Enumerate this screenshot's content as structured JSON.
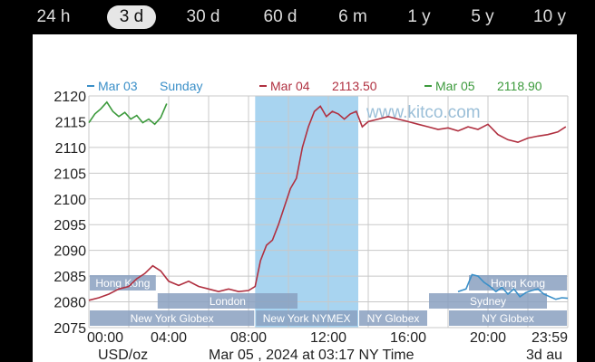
{
  "tabs": [
    {
      "label": "24 h",
      "active": false
    },
    {
      "label": "3 d",
      "active": true
    },
    {
      "label": "30 d",
      "active": false
    },
    {
      "label": "60 d",
      "active": false
    },
    {
      "label": "6 m",
      "active": false
    },
    {
      "label": "1 y",
      "active": false
    },
    {
      "label": "5 y",
      "active": false
    },
    {
      "label": "10 y",
      "active": false
    }
  ],
  "watermark": "www.kitco.com",
  "chart_data": {
    "type": "line",
    "ylim": [
      2075,
      2120
    ],
    "yticks": [
      2075,
      2080,
      2085,
      2090,
      2095,
      2100,
      2105,
      2110,
      2115,
      2120
    ],
    "xlim": [
      0,
      24
    ],
    "xticks": [
      {
        "x": 0,
        "label": "00:00"
      },
      {
        "x": 4,
        "label": "04:00"
      },
      {
        "x": 8,
        "label": "08:00"
      },
      {
        "x": 12,
        "label": "12:00"
      },
      {
        "x": 16,
        "label": "16:00"
      },
      {
        "x": 20,
        "label": "20:00"
      },
      {
        "x": 24,
        "label": "23:59"
      }
    ],
    "footer": {
      "left": "USD/oz",
      "center": "Mar 05 , 2024 at 03:17 NY Time",
      "right": "3d au"
    },
    "legend": [
      {
        "date": "Mar 03",
        "value": "Sunday",
        "color": "#3a8fc8"
      },
      {
        "date": "Mar 04",
        "value": "2113.50",
        "color": "#b03040"
      },
      {
        "date": "Mar 05",
        "value": "2118.90",
        "color": "#3c9a3c"
      }
    ],
    "highlight": {
      "start": 8.333,
      "end": 13.5,
      "color": "#a8d4f0"
    },
    "sessions": [
      {
        "label": "Hong Kong",
        "start": 0,
        "end": 3.4,
        "row": 0
      },
      {
        "label": "London",
        "start": 3.4,
        "end": 10.5,
        "row": 1
      },
      {
        "label": "New York Globex",
        "start": 0,
        "end": 8.33,
        "row": 2
      },
      {
        "label": "New York NYMEX",
        "start": 8.33,
        "end": 13.5,
        "row": 2
      },
      {
        "label": "NY Globex",
        "start": 13.5,
        "end": 17.0,
        "row": 2
      },
      {
        "label": "Hong Kong",
        "start": 19.0,
        "end": 24,
        "row": 0
      },
      {
        "label": "Sydney",
        "start": 17.0,
        "end": 23.0,
        "row": 1
      },
      {
        "label": "NY Globex",
        "start": 18.0,
        "end": 24,
        "row": 2
      }
    ],
    "series": [
      {
        "name": "Mar 04",
        "color": "#b03040",
        "x": [
          0,
          0.5,
          1,
          1.5,
          2,
          2.4,
          2.8,
          3.2,
          3.6,
          4,
          4.5,
          5,
          5.5,
          6,
          6.5,
          7,
          7.5,
          8,
          8.33,
          8.6,
          8.9,
          9.2,
          9.5,
          9.8,
          10.1,
          10.4,
          10.7,
          11,
          11.3,
          11.6,
          11.9,
          12.2,
          12.5,
          12.8,
          13.1,
          13.4,
          13.7,
          14,
          14.5,
          15,
          15.5,
          16,
          16.5,
          17,
          17.5,
          18,
          18.5,
          19,
          19.5,
          20,
          20.5,
          21,
          21.5,
          22,
          22.5,
          23,
          23.5,
          23.9
        ],
        "values": [
          2080.3,
          2080.8,
          2081.5,
          2082.5,
          2083.0,
          2084.5,
          2085.5,
          2087.0,
          2086.0,
          2084.0,
          2083.2,
          2084.0,
          2083.0,
          2082.5,
          2082.0,
          2082.5,
          2082.0,
          2082.2,
          2083.0,
          2088.0,
          2091.0,
          2092.0,
          2095.0,
          2098.5,
          2102.0,
          2104.0,
          2110.0,
          2114.0,
          2117.0,
          2118.0,
          2116.0,
          2117.0,
          2116.5,
          2115.5,
          2116.5,
          2117.0,
          2114.0,
          2115.0,
          2115.5,
          2116.0,
          2115.5,
          2115.0,
          2114.5,
          2114.0,
          2113.5,
          2113.8,
          2113.2,
          2114.0,
          2113.5,
          2114.5,
          2112.5,
          2111.5,
          2111.0,
          2111.8,
          2112.2,
          2112.5,
          2113.0,
          2114.0
        ]
      },
      {
        "name": "Mar 05",
        "color": "#3c9a3c",
        "x": [
          0,
          0.3,
          0.6,
          0.9,
          1.2,
          1.5,
          1.8,
          2.1,
          2.4,
          2.7,
          3.0,
          3.3,
          3.6,
          3.9
        ],
        "values": [
          2114.8,
          2116.5,
          2117.5,
          2118.8,
          2117.0,
          2116.0,
          2116.8,
          2115.5,
          2116.2,
          2114.8,
          2115.5,
          2114.5,
          2115.8,
          2118.5
        ]
      },
      {
        "name": "Mar 03",
        "color": "#3a8fc8",
        "x": [
          18.5,
          18.9,
          19.2,
          19.5,
          19.8,
          20.1,
          20.4,
          20.7,
          21.0,
          21.3,
          21.6,
          21.9,
          22.2,
          22.5,
          22.8,
          23.1,
          23.4,
          23.7,
          24
        ],
        "values": [
          2082.0,
          2082.5,
          2085.3,
          2085.0,
          2083.8,
          2083.0,
          2082.0,
          2082.8,
          2081.5,
          2082.5,
          2081.0,
          2081.8,
          2082.2,
          2082.5,
          2081.5,
          2081.0,
          2080.5,
          2080.8,
          2080.7
        ]
      }
    ]
  }
}
